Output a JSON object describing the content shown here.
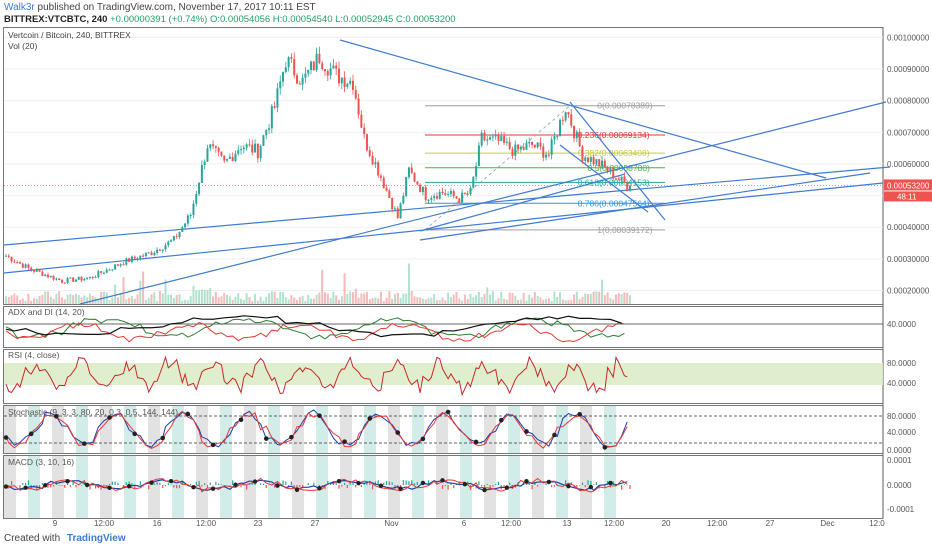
{
  "header": {
    "user": "Walk3r",
    "published": "published on TradingView.com, November 17, 2017 10:11 EST",
    "symbol_line": "BITTREX:VTCBTC, 240",
    "change": "+0.00000391 (+0.74%)",
    "ohlc": "O:0.00054056 H:0.00054540 L:0.00052945 C:0.00053200"
  },
  "footer": {
    "created_with": "Created with",
    "brand": "TradingView"
  },
  "main_pane": {
    "title": "Vertcoin / Bitcoin, 240, BITTREX",
    "vol_label": "Vol (20)",
    "price_ticks": [
      "0.00100000",
      "0.00090000",
      "0.00080000",
      "0.00070000",
      "0.00060000",
      "0.00050000",
      "0.00040000",
      "0.00030000",
      "0.00020000"
    ],
    "last_price": "0.00053200",
    "countdown": "48:11",
    "fib_levels": [
      {
        "label": "0(0.00078389)",
        "value": 0.00078389,
        "color": "#9e9e9e"
      },
      {
        "label": "0.236(0.00069134)",
        "value": 0.00069134,
        "color": "#e53935"
      },
      {
        "label": "0.382(0.00063408)",
        "value": 0.00063408,
        "color": "#c6cc3a"
      },
      {
        "label": "0.5(0.00058780)",
        "value": 0.0005878,
        "color": "#4caf50"
      },
      {
        "label": "0.618(0.00054153)",
        "value": 0.00054153,
        "color": "#26a69a"
      },
      {
        "label": "0.786(0.00047564)",
        "value": 0.00047564,
        "color": "#2196f3"
      },
      {
        "label": "1(0.00039172)",
        "value": 0.00039172,
        "color": "#9e9e9e"
      }
    ]
  },
  "panes": {
    "adx": {
      "title": "ADX and DI (14, 20)",
      "ticks": [
        "40.0000"
      ]
    },
    "rsi": {
      "title": "RSI (4, close)",
      "ticks": [
        "80.0000",
        "40.0000"
      ]
    },
    "stoch": {
      "title": "Stochastic (9, 3, 3, 80, 20, 0.3, 0.5, 144, 144)",
      "ticks": [
        "80.0000",
        "40.0000",
        "0.0000"
      ]
    },
    "macd": {
      "title": "MACD (3, 10, 16)",
      "ticks": [
        "0.0001",
        "0.0000",
        "-0.0001"
      ]
    }
  },
  "x_axis": {
    "ticks": [
      "9",
      "12:00",
      "16",
      "12:00",
      "23",
      "27",
      "Nov",
      "6",
      "12:00",
      "13",
      "12:00",
      "20",
      "12:00",
      "27",
      "Dec",
      "12:0"
    ]
  },
  "chart_data": {
    "type": "candlestick",
    "title": "Vertcoin / Bitcoin, 240, BITTREX",
    "ylim": [
      0.00017,
      0.00102
    ],
    "ohlc_keyframes": [
      [
        0,
        0.00031
      ],
      [
        8,
        0.00027
      ],
      [
        20,
        0.00023
      ],
      [
        30,
        0.00024
      ],
      [
        42,
        0.00029
      ],
      [
        52,
        0.00032
      ],
      [
        60,
        0.00036
      ],
      [
        66,
        0.00044
      ],
      [
        72,
        0.00066
      ],
      [
        78,
        0.0006
      ],
      [
        84,
        0.00066
      ],
      [
        90,
        0.00064
      ],
      [
        96,
        0.00078
      ],
      [
        100,
        0.00093
      ],
      [
        106,
        0.00086
      ],
      [
        112,
        0.00094
      ],
      [
        118,
        0.00088
      ],
      [
        124,
        0.00086
      ],
      [
        128,
        0.00068
      ],
      [
        134,
        0.00056
      ],
      [
        140,
        0.00043
      ],
      [
        144,
        0.00058
      ],
      [
        150,
        0.0005
      ],
      [
        156,
        0.00051
      ],
      [
        162,
        0.00049
      ],
      [
        166,
        0.00051
      ],
      [
        170,
        0.00068
      ],
      [
        176,
        0.00067
      ],
      [
        182,
        0.00064
      ],
      [
        188,
        0.00066
      ],
      [
        194,
        0.00063
      ],
      [
        200,
        0.00078
      ],
      [
        206,
        0.00063
      ],
      [
        212,
        0.0006
      ],
      [
        218,
        0.00056
      ],
      [
        222,
        0.00053
      ]
    ],
    "last_close": 0.000532
  }
}
